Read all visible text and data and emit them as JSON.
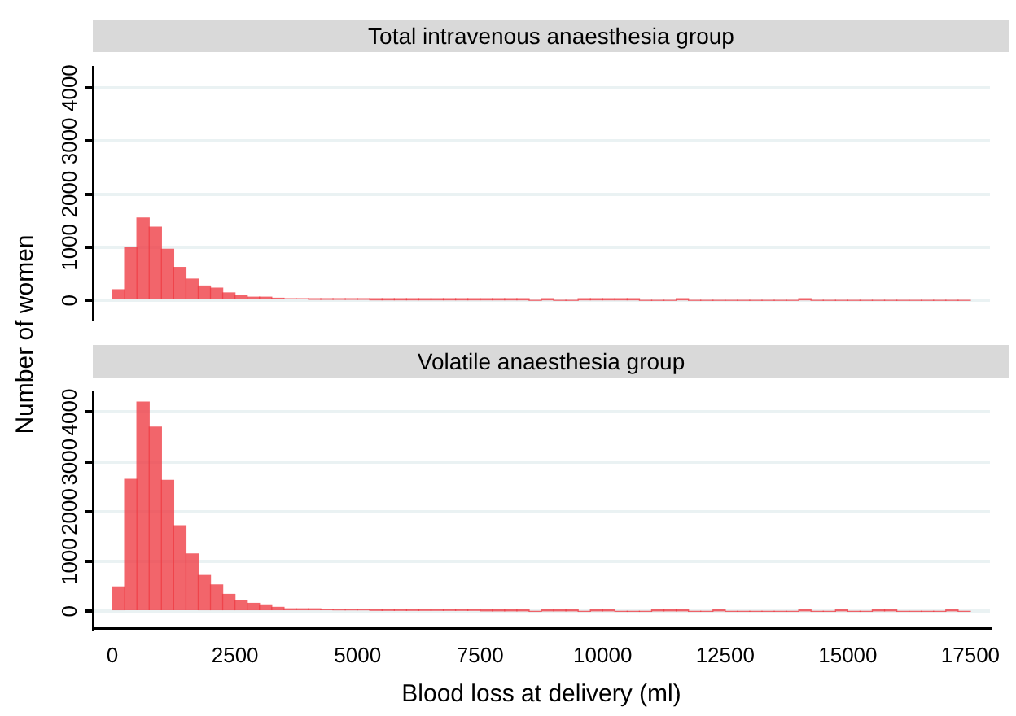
{
  "chart_data": [
    {
      "type": "histogram",
      "title": "Total intravenous anaesthesia group",
      "ylabel": "Number of women",
      "color": "#ee3b42",
      "grid": "y",
      "tick_labels": "y",
      "xlim": [
        -400,
        17900
      ],
      "ylim": [
        -350,
        4400
      ],
      "yticks": [
        0,
        1000,
        2000,
        3000,
        4000
      ],
      "bins": [
        0,
        250,
        500,
        750,
        1000,
        1250,
        1500,
        1750,
        2000,
        2250,
        2500,
        2750,
        3000,
        3250,
        3500,
        3750,
        4000,
        4250,
        4500,
        4750,
        5000,
        5250,
        5500,
        5750,
        6000,
        6250,
        6500,
        6750,
        7000,
        7250,
        7500,
        7750,
        8000,
        8250,
        8500,
        8750,
        9000,
        9250,
        9500,
        9750,
        10000,
        10250,
        10500,
        10750,
        11000,
        11250,
        11500,
        11750,
        12000,
        12250,
        12500,
        12750,
        13000,
        13250,
        13500,
        13750,
        14000,
        14250,
        14500,
        14750,
        15000,
        15250,
        15500,
        15750,
        16000,
        16250,
        16500,
        16750,
        17000,
        17250,
        17500
      ],
      "values": [
        200,
        1000,
        1550,
        1380,
        960,
        620,
        400,
        270,
        230,
        140,
        90,
        60,
        60,
        40,
        30,
        30,
        20,
        20,
        20,
        20,
        20,
        10,
        10,
        10,
        10,
        10,
        10,
        10,
        10,
        10,
        10,
        10,
        10,
        10,
        0,
        10,
        0,
        0,
        10,
        10,
        10,
        10,
        10,
        0,
        0,
        0,
        10,
        0,
        0,
        0,
        0,
        0,
        0,
        0,
        0,
        0,
        10,
        0,
        0,
        0,
        0,
        0,
        0,
        0,
        0,
        0,
        0,
        0,
        0,
        0
      ]
    },
    {
      "type": "histogram",
      "title": "Volatile anaesthesia group",
      "xlabel": "Blood loss at delivery (ml)",
      "color": "#ee3b42",
      "grid": "y",
      "xlim": [
        -400,
        17900
      ],
      "xticks": [
        0,
        2500,
        5000,
        7500,
        10000,
        12500,
        15000,
        17500
      ],
      "ylim": [
        -350,
        4400
      ],
      "yticks": [
        0,
        1000,
        2000,
        3000,
        4000
      ],
      "bins": [
        0,
        250,
        500,
        750,
        1000,
        1250,
        1500,
        1750,
        2000,
        2250,
        2500,
        2750,
        3000,
        3250,
        3500,
        3750,
        4000,
        4250,
        4500,
        4750,
        5000,
        5250,
        5500,
        5750,
        6000,
        6250,
        6500,
        6750,
        7000,
        7250,
        7500,
        7750,
        8000,
        8250,
        8500,
        8750,
        9000,
        9250,
        9500,
        9750,
        10000,
        10250,
        10500,
        10750,
        11000,
        11250,
        11500,
        11750,
        12000,
        12250,
        12500,
        12750,
        13000,
        13250,
        13500,
        13750,
        14000,
        14250,
        14500,
        14750,
        15000,
        15250,
        15500,
        15750,
        16000,
        16250,
        16500,
        16750,
        17000,
        17250,
        17500
      ],
      "values": [
        490,
        2650,
        4200,
        3700,
        2630,
        1720,
        1150,
        720,
        530,
        340,
        220,
        160,
        130,
        80,
        50,
        50,
        50,
        40,
        30,
        30,
        30,
        20,
        20,
        20,
        20,
        20,
        20,
        20,
        20,
        20,
        10,
        10,
        10,
        10,
        0,
        10,
        10,
        10,
        0,
        10,
        10,
        0,
        0,
        0,
        10,
        10,
        10,
        0,
        0,
        10,
        0,
        0,
        0,
        0,
        0,
        0,
        10,
        0,
        0,
        10,
        0,
        0,
        10,
        10,
        0,
        0,
        0,
        0,
        10,
        0
      ]
    }
  ]
}
